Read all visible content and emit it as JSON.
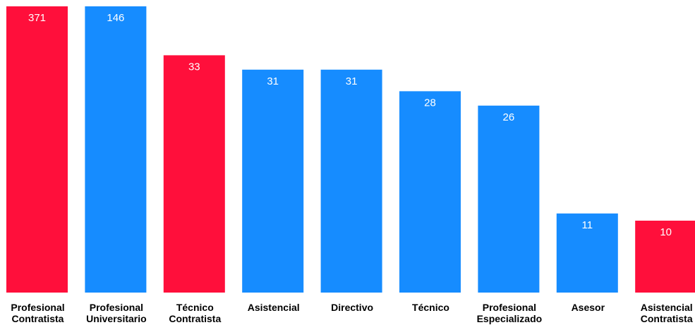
{
  "chart_data": {
    "type": "bar",
    "categories": [
      "Profesional Contratista",
      "Profesional Universitario",
      "Técnico Contratista",
      "Asistencial",
      "Directivo",
      "Técnico",
      "Profesional Especializado",
      "Asesor",
      "Asistencial Contratista"
    ],
    "category_lines": [
      [
        "Profesional",
        "Contratista"
      ],
      [
        "Profesional",
        "Universitario"
      ],
      [
        "Técnico",
        "Contratista"
      ],
      [
        "Asistencial"
      ],
      [
        "Directivo"
      ],
      [
        "Técnico"
      ],
      [
        "Profesional",
        "Especializado"
      ],
      [
        "Asesor"
      ],
      [
        "Asistencial",
        "Contratista"
      ]
    ],
    "values": [
      371,
      146,
      33,
      31,
      31,
      28,
      26,
      11,
      10
    ],
    "bar_colors": [
      "#ff0f3b",
      "#168cff",
      "#ff0f3b",
      "#168cff",
      "#168cff",
      "#168cff",
      "#168cff",
      "#168cff",
      "#ff0f3b"
    ],
    "data_labels": true,
    "scale": "broken",
    "title": "",
    "xlabel": "",
    "ylabel": "",
    "grid": false,
    "legend": "none"
  }
}
